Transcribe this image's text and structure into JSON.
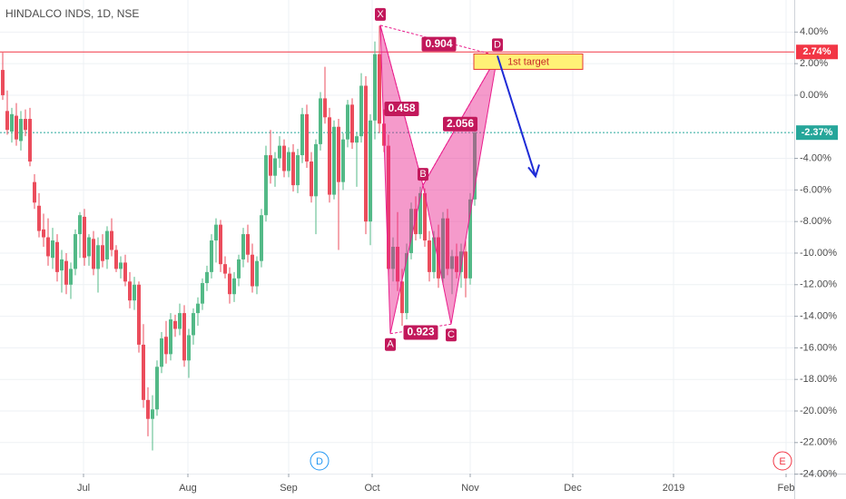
{
  "chart_data": {
    "type": "candlestick",
    "title": "HINDALCO INDS, 1D, NSE",
    "up_color": "#53b987",
    "down_color": "#eb4d5c",
    "grid": true,
    "xlim": [
      -0.6,
      174.4
    ],
    "xticks": [
      {
        "value": 17.8,
        "label": "Jul"
      },
      {
        "value": 40.8,
        "label": "Aug"
      },
      {
        "value": 63,
        "label": "Sep"
      },
      {
        "value": 81.4,
        "label": "Oct"
      },
      {
        "value": 103,
        "label": "Nov"
      },
      {
        "value": 125.6,
        "label": "Dec"
      },
      {
        "value": 147.8,
        "label": "2019"
      },
      {
        "value": 172.6,
        "label": "Feb"
      }
    ],
    "ylim": [
      -23.85,
      6.03
    ],
    "yticks": [
      {
        "value": 4,
        "label": "4.00%"
      },
      {
        "value": 2,
        "label": "2.00%"
      },
      {
        "value": 0,
        "label": "0.00%"
      },
      {
        "value": -4,
        "label": "-4.00%"
      },
      {
        "value": -6,
        "label": "-6.00%"
      },
      {
        "value": -8,
        "label": "-8.00%"
      },
      {
        "value": -10,
        "label": "-10.00%"
      },
      {
        "value": -12,
        "label": "-12.00%"
      },
      {
        "value": -14,
        "label": "-14.00%"
      },
      {
        "value": -16,
        "label": "-16.00%"
      },
      {
        "value": -18,
        "label": "-18.00%"
      },
      {
        "value": -20,
        "label": "-20.00%"
      },
      {
        "value": -22,
        "label": "-22.00%"
      },
      {
        "value": -24,
        "label": "-24.00%"
      }
    ],
    "candles": [
      [
        1.6,
        2.7,
        -0.3,
        0.0
      ],
      [
        -1,
        0.3,
        -2.5,
        -2.2
      ],
      [
        -2.3,
        -0.8,
        -3,
        -1.2
      ],
      [
        -1.3,
        -0.5,
        -3.2,
        -2.8
      ],
      [
        -2.9,
        -1,
        -3.5,
        -1.5
      ],
      [
        -1.5,
        -0.9,
        -2.6,
        -2.2
      ],
      [
        -1.5,
        -0.8,
        -4.5,
        -4.2
      ],
      [
        -5.5,
        -5,
        -7.2,
        -6.8
      ],
      [
        -7,
        -6.2,
        -9,
        -8.6
      ],
      [
        -8.5,
        -7.5,
        -9.6,
        -9.0
      ],
      [
        -9,
        -7.8,
        -10.8,
        -10.2
      ],
      [
        -10.3,
        -8.4,
        -11,
        -9.2
      ],
      [
        -9.3,
        -8.8,
        -11.8,
        -11.2
      ],
      [
        -11.1,
        -9.8,
        -12.5,
        -10.4
      ],
      [
        -10.5,
        -10,
        -12.6,
        -12
      ],
      [
        -12,
        -10.6,
        -12.9,
        -11
      ],
      [
        -11,
        -8.5,
        -11.4,
        -8.8
      ],
      [
        -8.8,
        -7.4,
        -10.3,
        -7.6
      ],
      [
        -7.7,
        -7.2,
        -10.8,
        -10.3
      ],
      [
        -10.2,
        -8.8,
        -10.8,
        -9.0
      ],
      [
        -9.1,
        -8.6,
        -11.4,
        -11
      ],
      [
        -11,
        -9,
        -12.5,
        -9.5
      ],
      [
        -9.5,
        -8.8,
        -10.9,
        -10.5
      ],
      [
        -10.4,
        -8.3,
        -11,
        -8.6
      ],
      [
        -8.6,
        -7.8,
        -10.2,
        -9.8
      ],
      [
        -9.8,
        -9.5,
        -11.2,
        -11
      ],
      [
        -11,
        -10.2,
        -11.6,
        -10.6
      ],
      [
        -10.6,
        -10.1,
        -12.1,
        -11.8
      ],
      [
        -11.8,
        -11.2,
        -13.5,
        -13
      ],
      [
        -13,
        -11.5,
        -13.6,
        -12
      ],
      [
        -12,
        -11.8,
        -16.3,
        -15.8
      ],
      [
        -15.8,
        -14.5,
        -19.8,
        -19.3
      ],
      [
        -19.3,
        -18.5,
        -21.6,
        -20.5
      ],
      [
        -20.5,
        -19,
        -22.5,
        -19.9
      ],
      [
        -19.9,
        -16.8,
        -20.3,
        -17.2
      ],
      [
        -17.2,
        -15,
        -17.6,
        -15.4
      ],
      [
        -15.3,
        -14.3,
        -17,
        -16.4
      ],
      [
        -16.4,
        -13.8,
        -16.8,
        -14.2
      ],
      [
        -14.3,
        -13.9,
        -15.3,
        -14.8
      ],
      [
        -14.8,
        -13.2,
        -15.2,
        -13.8
      ],
      [
        -13.8,
        -13.3,
        -17.2,
        -16.8
      ],
      [
        -16.8,
        -14.8,
        -17.9,
        -15.2
      ],
      [
        -15.2,
        -13.5,
        -15.8,
        -13.8
      ],
      [
        -13.8,
        -12.8,
        -14.6,
        -13.2
      ],
      [
        -13.2,
        -11.6,
        -13.6,
        -11.9
      ],
      [
        -11.9,
        -10.8,
        -12.4,
        -11.2
      ],
      [
        -11.2,
        -8.8,
        -11.6,
        -9.2
      ],
      [
        -9.2,
        -7.8,
        -10.6,
        -8.2
      ],
      [
        -8.2,
        -7.9,
        -11.2,
        -10.7
      ],
      [
        -10.7,
        -10.2,
        -11.6,
        -11.3
      ],
      [
        -11.3,
        -10.9,
        -13.2,
        -12.6
      ],
      [
        -12.6,
        -11.2,
        -13.1,
        -11.6
      ],
      [
        -11.6,
        -10.1,
        -12.1,
        -10.4
      ],
      [
        -10.4,
        -8.4,
        -10.9,
        -8.8
      ],
      [
        -8.8,
        -8.2,
        -10.6,
        -10.1
      ],
      [
        -10.1,
        -9.4,
        -12.5,
        -12.1
      ],
      [
        -12.1,
        -10.2,
        -12.6,
        -10.5
      ],
      [
        -10.5,
        -7.2,
        -10.9,
        -7.6
      ],
      [
        -7.6,
        -3.2,
        -8,
        -3.8
      ],
      [
        -3.8,
        -2.2,
        -5.6,
        -5.1
      ],
      [
        -5.1,
        -3.6,
        -5.8,
        -4.0
      ],
      [
        -4,
        -2.6,
        -4.6,
        -3.2
      ],
      [
        -3.2,
        -2.8,
        -5.2,
        -4.8
      ],
      [
        -4.8,
        -3.3,
        -5.2,
        -3.6
      ],
      [
        -3.6,
        -3.1,
        -6.1,
        -5.7
      ],
      [
        -5.7,
        -3.4,
        -6.2,
        -3.8
      ],
      [
        -3.8,
        -0.8,
        -4.3,
        -1.2
      ],
      [
        -1.2,
        -0.6,
        -4.6,
        -4.2
      ],
      [
        -4.2,
        -3.6,
        -6.8,
        -6.4
      ],
      [
        -6.4,
        -2.8,
        -8.8,
        -3.1
      ],
      [
        -3.1,
        0.2,
        -3.5,
        -0.2
      ],
      [
        -0.2,
        1.8,
        -1.8,
        -1.4
      ],
      [
        -1.4,
        -0.8,
        -6.8,
        -6.3
      ],
      [
        -6.3,
        -1.6,
        -6.6,
        -2
      ],
      [
        -2,
        -1.5,
        -9.8,
        -5.5
      ],
      [
        -5.5,
        -2.4,
        -6,
        -2.8
      ],
      [
        -2.8,
        -0.3,
        -3.3,
        -0.6
      ],
      [
        -0.6,
        -0.2,
        -3.4,
        -3
      ],
      [
        -3,
        -2.4,
        -5.8,
        -2.6
      ],
      [
        -2.6,
        1.4,
        -3,
        0.6
      ],
      [
        0.6,
        1.2,
        -8.8,
        -8
      ],
      [
        -8,
        -1.2,
        -9.5,
        -1.6
      ],
      [
        -1.6,
        3.4,
        -2.8,
        2.6
      ],
      [
        2.6,
        4.4,
        -2.4,
        -1.8
      ],
      [
        -1.8,
        -0.9,
        -3.6,
        -3.2
      ],
      [
        -3.2,
        -2.5,
        -11.5,
        -11
      ],
      [
        -11,
        -9,
        -11.8,
        -9.6
      ],
      [
        -9.6,
        -7.4,
        -12.4,
        -11.8
      ],
      [
        -11.8,
        -11,
        -14.6,
        -13.8
      ],
      [
        -13.8,
        -9.4,
        -14.2,
        -10
      ],
      [
        -10,
        -6.8,
        -10.4,
        -7.2
      ],
      [
        -7.2,
        -6.4,
        -9.2,
        -8.8
      ],
      [
        -8.8,
        -5.8,
        -9.1,
        -6.2
      ],
      [
        -6.2,
        -5.9,
        -9.6,
        -9.2
      ],
      [
        -9.2,
        -8.6,
        -11.8,
        -11.2
      ],
      [
        -11.2,
        -8.6,
        -11.6,
        -9
      ],
      [
        -9,
        -8.2,
        -12.2,
        -11.6
      ],
      [
        -11.6,
        -7.4,
        -12,
        -7.8
      ],
      [
        -7.8,
        -7.2,
        -11.4,
        -11
      ],
      [
        -11,
        -9.8,
        -12.6,
        -10.2
      ],
      [
        -10.2,
        -9.4,
        -11.6,
        -11.2
      ],
      [
        -11.2,
        -9.4,
        -12.2,
        -9.9
      ],
      [
        -9.9,
        -9.2,
        -12.8,
        -11.6
      ],
      [
        -11.6,
        -6.2,
        -12,
        -6.6
      ],
      [
        -6.6,
        -2.2,
        -7,
        -2.37
      ]
    ],
    "price_lines": [
      {
        "value": 2.74,
        "label": "2.74%",
        "color": "#f23645"
      },
      {
        "value": -2.37,
        "label": "-2.37%",
        "color": "#26a69a"
      }
    ],
    "pattern": {
      "color": "#e91e8c",
      "points": [
        {
          "label": "X",
          "x": 83.2,
          "y": 4.43
        },
        {
          "label": "A",
          "x": 85.4,
          "y": -15.1
        },
        {
          "label": "B",
          "x": 92.6,
          "y": -5.7
        },
        {
          "label": "C",
          "x": 98.8,
          "y": -14.5
        },
        {
          "label": "D",
          "x": 109,
          "y": 2.5
        }
      ],
      "ratios": [
        {
          "label": "0.458",
          "from": 0,
          "to": 2
        },
        {
          "label": "0.923",
          "from": 1,
          "to": 3
        },
        {
          "label": "2.056",
          "from": 2,
          "to": 4
        },
        {
          "label": "0.904",
          "from": 0,
          "to": 4
        }
      ]
    },
    "target_label": "1st target",
    "events": [
      {
        "label": "D",
        "color": "#2196f3"
      },
      {
        "label": "E",
        "color": "#f23645"
      }
    ]
  }
}
